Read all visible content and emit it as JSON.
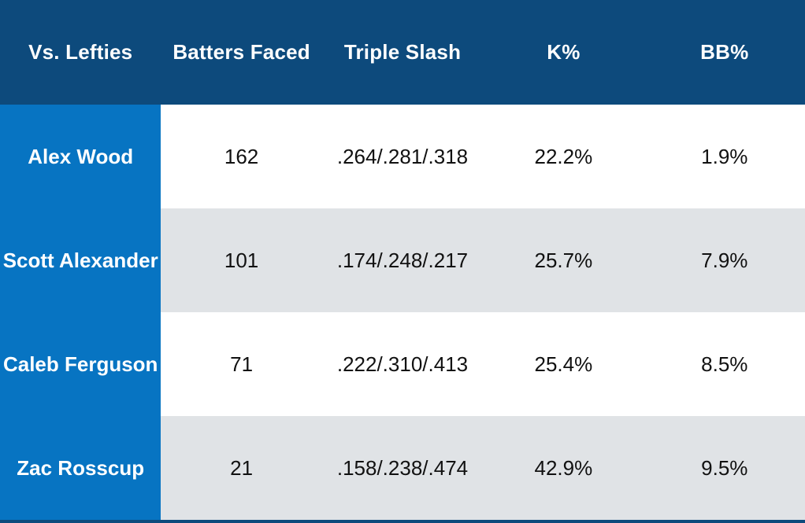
{
  "title": "Vs. Lefties",
  "colors": {
    "header_navy": "#0d4a7c",
    "name_column_blue": "#0774c2",
    "row_gray": "#e0e3e6",
    "row_white": "#ffffff",
    "header_text": "#ffffff",
    "data_text": "#111111"
  },
  "table": {
    "header": {
      "corner": "Vs. Lefties",
      "batters_faced": "Batters Faced",
      "triple_slash": "Triple Slash",
      "k_pct": "K%",
      "bb_pct": "BB%"
    },
    "rows": [
      {
        "name": "Alex Wood",
        "batters_faced": "162",
        "triple_slash": ".264/.281/.318",
        "k_pct": "22.2%",
        "bb_pct": "1.9%"
      },
      {
        "name": "Scott Alexander",
        "batters_faced": "101",
        "triple_slash": ".174/.248/.217",
        "k_pct": "25.7%",
        "bb_pct": "7.9%"
      },
      {
        "name": "Caleb Ferguson",
        "batters_faced": "71",
        "triple_slash": ".222/.310/.413",
        "k_pct": "25.4%",
        "bb_pct": "8.5%"
      },
      {
        "name": "Zac Rosscup",
        "batters_faced": "21",
        "triple_slash": ".158/.238/.474",
        "k_pct": "42.9%",
        "bb_pct": "9.5%"
      }
    ]
  },
  "chart_data": {
    "type": "table",
    "title": "Vs. Lefties",
    "columns": [
      "Vs. Lefties",
      "Batters Faced",
      "Triple Slash",
      "K%",
      "BB%"
    ],
    "rows": [
      [
        "Alex Wood",
        162,
        ".264/.281/.318",
        "22.2%",
        "1.9%"
      ],
      [
        "Scott Alexander",
        101,
        ".174/.248/.217",
        "25.7%",
        "7.9%"
      ],
      [
        "Caleb Ferguson",
        71,
        ".222/.310/.413",
        "25.4%",
        "8.5%"
      ],
      [
        "Zac Rosscup",
        21,
        ".158/.238/.474",
        "42.9%",
        "9.5%"
      ]
    ],
    "layout": {
      "name_column_highlighted": true,
      "zebra_striping": true,
      "all_cells_centered": true
    }
  }
}
